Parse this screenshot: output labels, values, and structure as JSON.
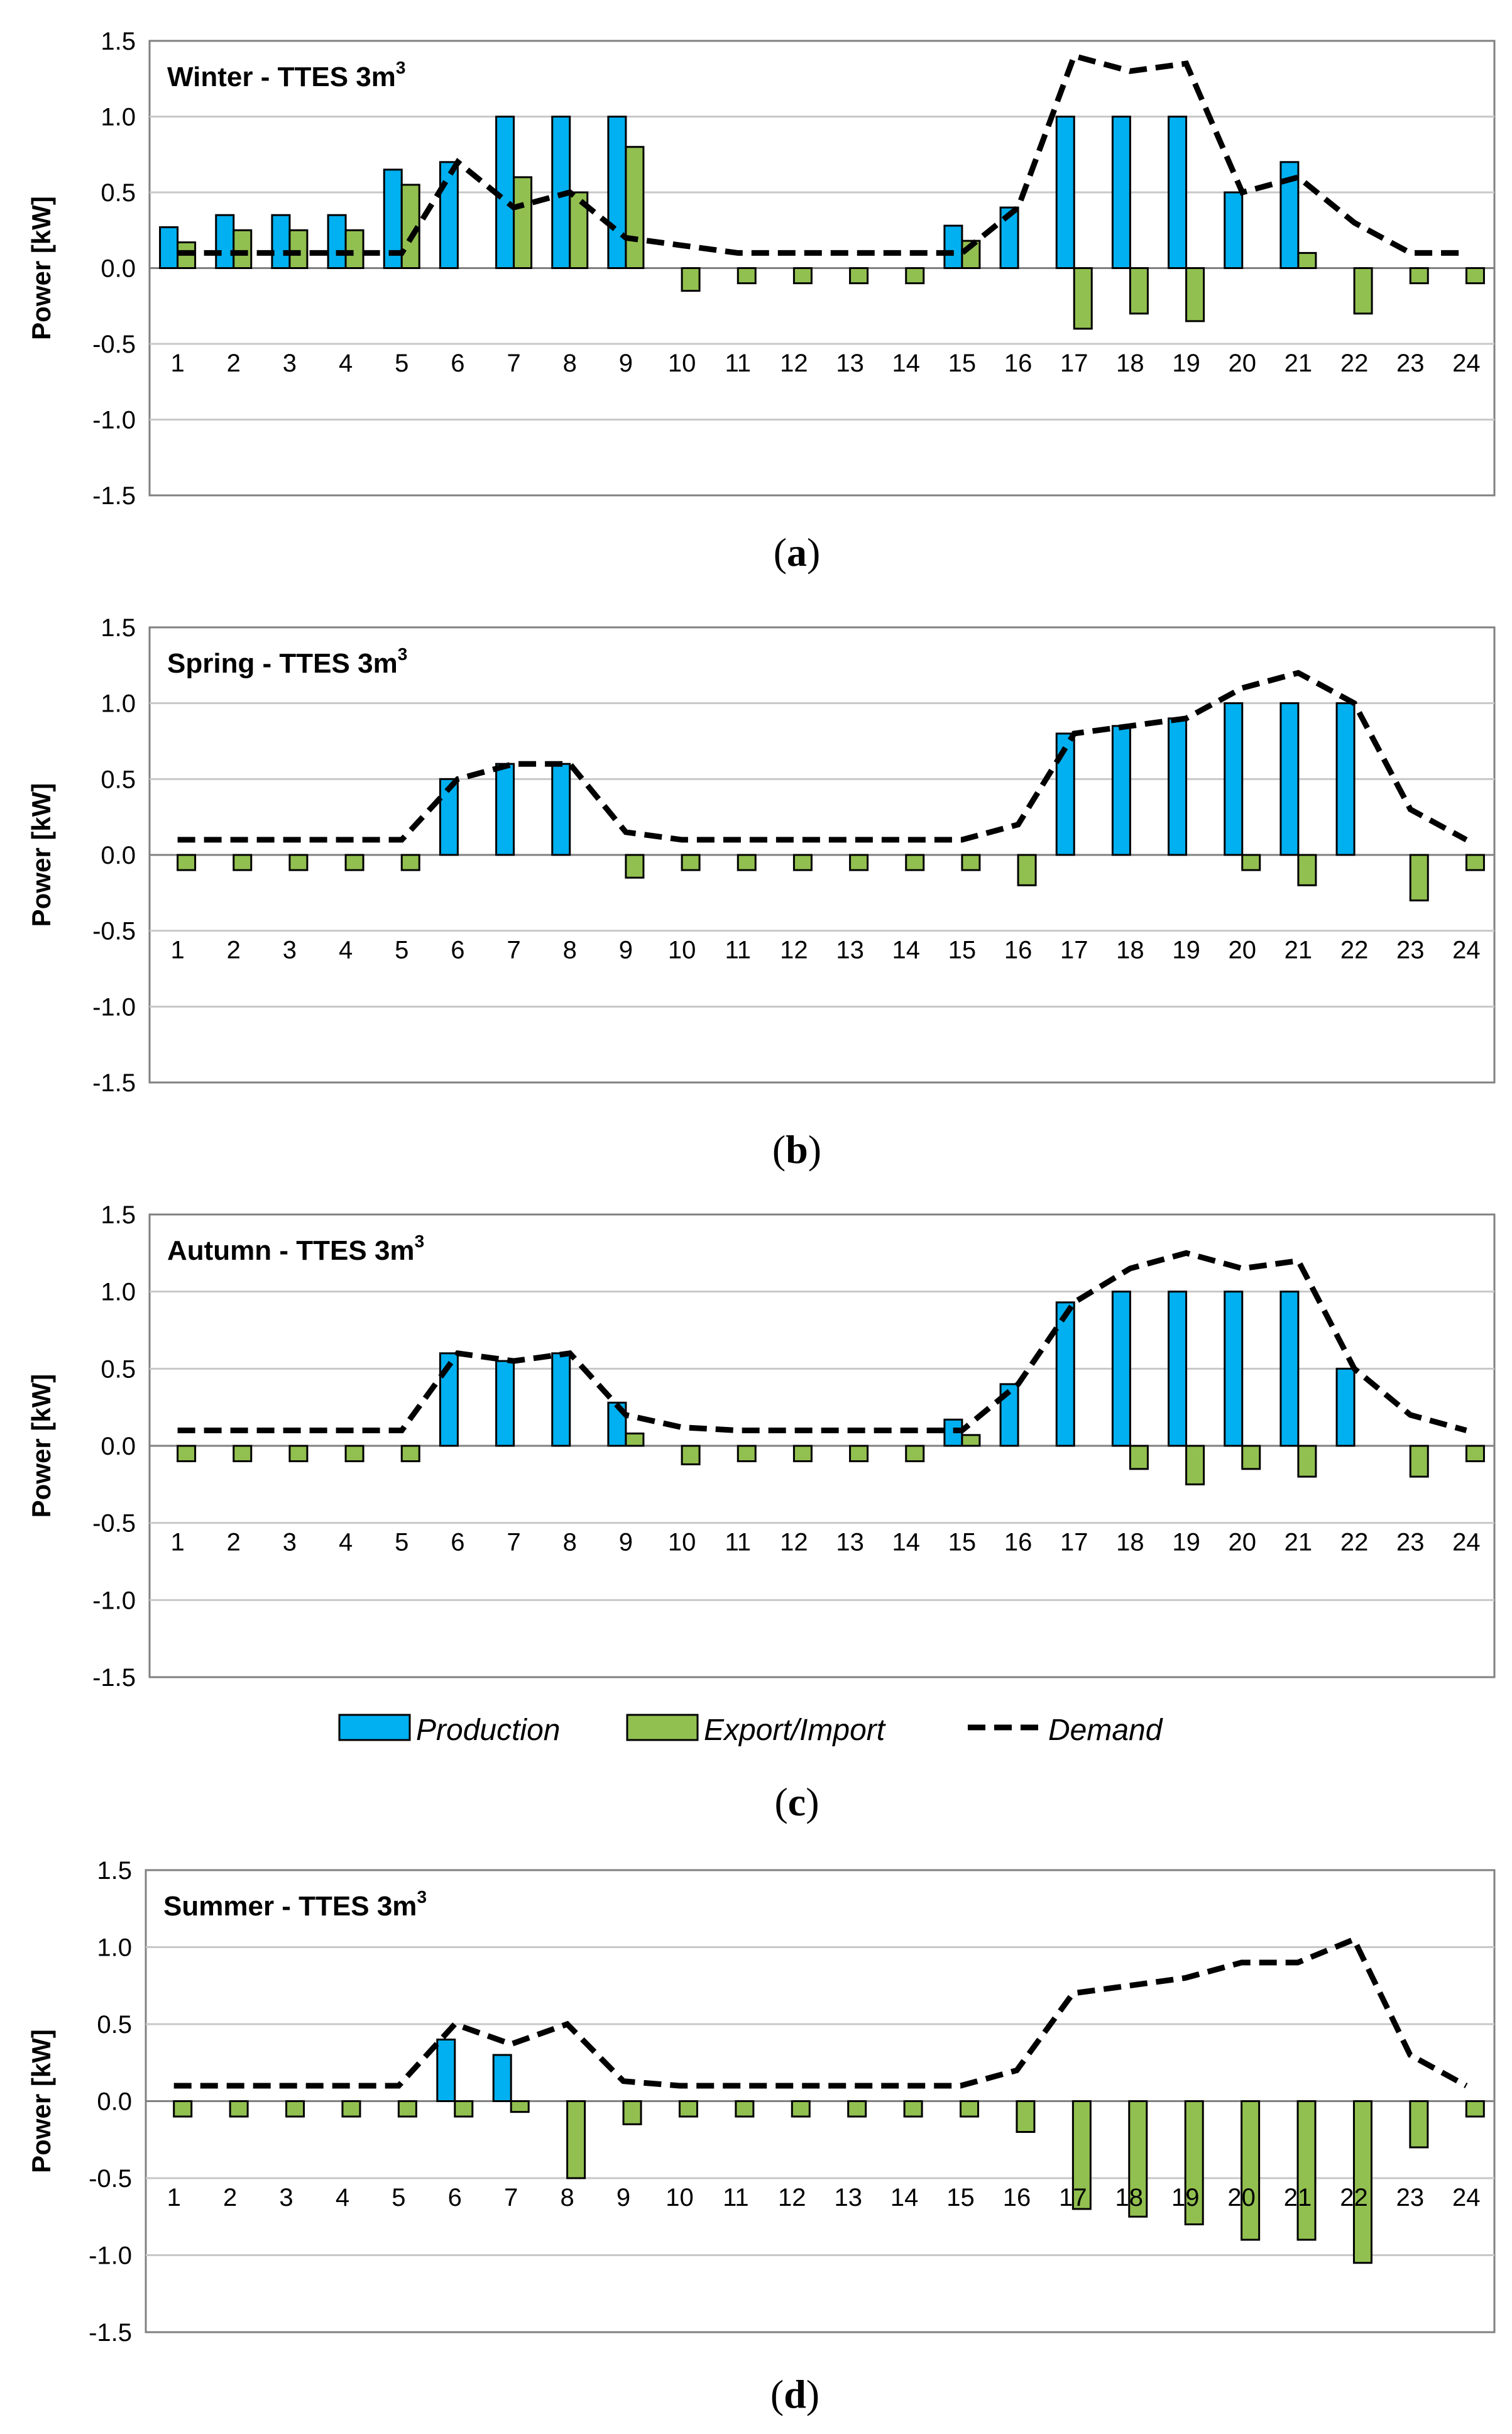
{
  "legend": {
    "production": "Production",
    "export": "Export/Import",
    "demand": "Demand"
  },
  "colors": {
    "production": "#00b0f0",
    "export": "#92c050",
    "demand": "#000000"
  },
  "chart_data": [
    {
      "type": "bar",
      "title": "Winter - TTES 3m",
      "title_sup": "3",
      "caption": "a",
      "ylabel": "Power [kW]",
      "ylim": [
        -1.5,
        1.5
      ],
      "yticks": [
        "1.5",
        "1.0",
        "0.5",
        "0.0",
        "-0.5",
        "-1.0",
        "-1.5"
      ],
      "categories": [
        "1",
        "2",
        "3",
        "4",
        "5",
        "6",
        "7",
        "8",
        "9",
        "10",
        "11",
        "12",
        "13",
        "14",
        "15",
        "16",
        "17",
        "18",
        "19",
        "20",
        "21",
        "22",
        "23",
        "24"
      ],
      "series": [
        {
          "name": "Production",
          "values": [
            0.27,
            0.35,
            0.35,
            0.35,
            0.65,
            0.7,
            1.0,
            1.0,
            1.0,
            0,
            0,
            0,
            0,
            0,
            0.28,
            0.4,
            1.0,
            1.0,
            1.0,
            0.5,
            0.7,
            0,
            0,
            0
          ]
        },
        {
          "name": "Export/Import",
          "values": [
            0.17,
            0.25,
            0.25,
            0.25,
            0.55,
            0,
            0.6,
            0.5,
            0.8,
            -0.15,
            -0.1,
            -0.1,
            -0.1,
            -0.1,
            0.18,
            0,
            -0.4,
            -0.3,
            -0.35,
            0,
            0.1,
            -0.3,
            -0.1,
            -0.1
          ]
        },
        {
          "name": "Demand",
          "values": [
            0.1,
            0.1,
            0.1,
            0.1,
            0.1,
            0.7,
            0.4,
            0.5,
            0.2,
            0.15,
            0.1,
            0.1,
            0.1,
            0.1,
            0.1,
            0.4,
            1.4,
            1.3,
            1.35,
            0.5,
            0.6,
            0.3,
            0.1,
            0.1
          ]
        }
      ]
    },
    {
      "type": "bar",
      "title": "Spring - TTES 3m",
      "title_sup": "3",
      "caption": "b",
      "ylabel": "Power [kW]",
      "ylim": [
        -1.5,
        1.5
      ],
      "yticks": [
        "1.5",
        "1.0",
        "0.5",
        "0.0",
        "-0.5",
        "-1.0",
        "-1.5"
      ],
      "categories": [
        "1",
        "2",
        "3",
        "4",
        "5",
        "6",
        "7",
        "8",
        "9",
        "10",
        "11",
        "12",
        "13",
        "14",
        "15",
        "16",
        "17",
        "18",
        "19",
        "20",
        "21",
        "22",
        "23",
        "24"
      ],
      "series": [
        {
          "name": "Production",
          "values": [
            0,
            0,
            0,
            0,
            0,
            0.5,
            0.6,
            0.6,
            0,
            0,
            0,
            0,
            0,
            0,
            0,
            0,
            0.8,
            0.85,
            0.9,
            1.0,
            1.0,
            1.0,
            0,
            0
          ]
        },
        {
          "name": "Export/Import",
          "values": [
            -0.1,
            -0.1,
            -0.1,
            -0.1,
            -0.1,
            0,
            0,
            0,
            -0.15,
            -0.1,
            -0.1,
            -0.1,
            -0.1,
            -0.1,
            -0.1,
            -0.2,
            0,
            0,
            0,
            -0.1,
            -0.2,
            0,
            -0.3,
            -0.1
          ]
        },
        {
          "name": "Demand",
          "values": [
            0.1,
            0.1,
            0.1,
            0.1,
            0.1,
            0.5,
            0.6,
            0.6,
            0.15,
            0.1,
            0.1,
            0.1,
            0.1,
            0.1,
            0.1,
            0.2,
            0.8,
            0.85,
            0.9,
            1.1,
            1.2,
            1.0,
            0.3,
            0.1
          ]
        }
      ]
    },
    {
      "type": "bar",
      "title": "Autumn - TTES 3m",
      "title_sup": "3",
      "caption": "c",
      "ylabel": "Power [kW]",
      "ylim": [
        -1.5,
        1.5
      ],
      "yticks": [
        "1.5",
        "1.0",
        "0.5",
        "0.0",
        "-0.5",
        "-1.0",
        "-1.5"
      ],
      "categories": [
        "1",
        "2",
        "3",
        "4",
        "5",
        "6",
        "7",
        "8",
        "9",
        "10",
        "11",
        "12",
        "13",
        "14",
        "15",
        "16",
        "17",
        "18",
        "19",
        "20",
        "21",
        "22",
        "23",
        "24"
      ],
      "series": [
        {
          "name": "Production",
          "values": [
            0,
            0,
            0,
            0,
            0,
            0.6,
            0.55,
            0.6,
            0.28,
            0,
            0,
            0,
            0,
            0,
            0.17,
            0.4,
            0.93,
            1.0,
            1.0,
            1.0,
            1.0,
            0.5,
            0,
            0
          ]
        },
        {
          "name": "Export/Import",
          "values": [
            -0.1,
            -0.1,
            -0.1,
            -0.1,
            -0.1,
            0,
            0,
            0,
            0.08,
            -0.12,
            -0.1,
            -0.1,
            -0.1,
            -0.1,
            0.07,
            0,
            0,
            -0.15,
            -0.25,
            -0.15,
            -0.2,
            0,
            -0.2,
            -0.1
          ]
        },
        {
          "name": "Demand",
          "values": [
            0.1,
            0.1,
            0.1,
            0.1,
            0.1,
            0.6,
            0.55,
            0.6,
            0.2,
            0.12,
            0.1,
            0.1,
            0.1,
            0.1,
            0.1,
            0.4,
            0.93,
            1.15,
            1.25,
            1.15,
            1.2,
            0.5,
            0.2,
            0.1
          ]
        }
      ]
    },
    {
      "type": "bar",
      "title": "Summer - TTES 3m",
      "title_sup": "3",
      "caption": "d",
      "ylabel": "Power [kW]",
      "ylim": [
        -1.5,
        1.5
      ],
      "yticks": [
        "1.5",
        "1.0",
        "0.5",
        "0.0",
        "-0.5",
        "-1.0",
        "-1.5"
      ],
      "categories": [
        "1",
        "2",
        "3",
        "4",
        "5",
        "6",
        "7",
        "8",
        "9",
        "10",
        "11",
        "12",
        "13",
        "14",
        "15",
        "16",
        "17",
        "18",
        "19",
        "20",
        "21",
        "22",
        "23",
        "24"
      ],
      "series": [
        {
          "name": "Production",
          "values": [
            0,
            0,
            0,
            0,
            0,
            0.4,
            0.3,
            0,
            0,
            0,
            0,
            0,
            0,
            0,
            0,
            0,
            0,
            0,
            0,
            0,
            0,
            0,
            0,
            0
          ]
        },
        {
          "name": "Export/Import",
          "values": [
            -0.1,
            -0.1,
            -0.1,
            -0.1,
            -0.1,
            -0.1,
            -0.07,
            -0.5,
            -0.15,
            -0.1,
            -0.1,
            -0.1,
            -0.1,
            -0.1,
            -0.1,
            -0.2,
            -0.7,
            -0.75,
            -0.8,
            -0.9,
            -0.9,
            -1.05,
            -0.3,
            -0.1
          ]
        },
        {
          "name": "Demand",
          "values": [
            0.1,
            0.1,
            0.1,
            0.1,
            0.1,
            0.5,
            0.37,
            0.5,
            0.13,
            0.1,
            0.1,
            0.1,
            0.1,
            0.1,
            0.1,
            0.2,
            0.7,
            0.75,
            0.8,
            0.9,
            0.9,
            1.05,
            0.3,
            0.1
          ]
        }
      ]
    }
  ]
}
